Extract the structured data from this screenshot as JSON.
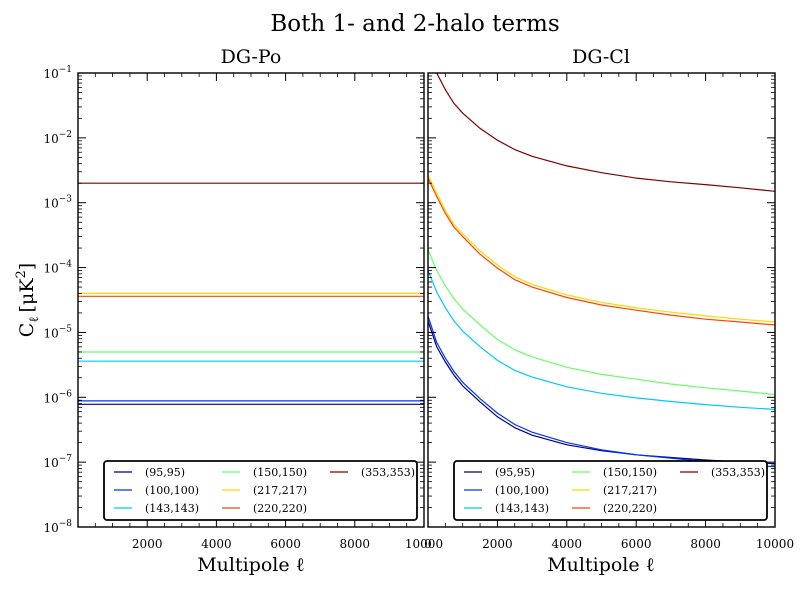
{
  "figure": {
    "suptitle": "Both 1- and 2-halo terms",
    "ylabel_main": "C",
    "ylabel_sub": "ℓ",
    "ylabel_unit": "[μK",
    "ylabel_sup": "2",
    "ylabel_close": "]",
    "xlabel": "Multipole ℓ"
  },
  "y_tick_base": "10",
  "y_tick_exponents": [
    "−8",
    "−7",
    "−6",
    "−5",
    "−4",
    "−3",
    "−2",
    "−1"
  ],
  "x_tick_labels_left": [
    "2000",
    "4000",
    "6000",
    "8000",
    "10000"
  ],
  "x_tick_labels_right": [
    "0",
    "2000",
    "4000",
    "6000",
    "8000",
    "10000"
  ],
  "legend": {
    "items": [
      {
        "label": "(95,95)",
        "color": "#00007f"
      },
      {
        "label": "(100,100)",
        "color": "#0032ff"
      },
      {
        "label": "(143,143)",
        "color": "#00c8ff"
      },
      {
        "label": "(150,150)",
        "color": "#66ff66"
      },
      {
        "label": "(217,217)",
        "color": "#ffd700"
      },
      {
        "label": "(220,220)",
        "color": "#ff4500"
      },
      {
        "label": "(353,353)",
        "color": "#7f0000"
      }
    ]
  },
  "chart_data": [
    {
      "type": "line",
      "title": "DG-Po",
      "xlabel": "Multipole ℓ",
      "ylabel": "Cℓ [μK²]",
      "xlim": [
        0,
        10000
      ],
      "ylim": [
        1e-08,
        0.1
      ],
      "yscale": "log",
      "grid": false,
      "legend_position": "lower center",
      "series": [
        {
          "name": "(95,95)",
          "color": "#00007f",
          "x": [
            0,
            10000
          ],
          "y": [
            7.8e-07,
            7.8e-07
          ]
        },
        {
          "name": "(100,100)",
          "color": "#0032ff",
          "x": [
            0,
            10000
          ],
          "y": [
            8.8e-07,
            8.8e-07
          ]
        },
        {
          "name": "(143,143)",
          "color": "#00c8ff",
          "x": [
            0,
            10000
          ],
          "y": [
            3.6e-06,
            3.6e-06
          ]
        },
        {
          "name": "(150,150)",
          "color": "#66ff66",
          "x": [
            0,
            10000
          ],
          "y": [
            5e-06,
            5e-06
          ]
        },
        {
          "name": "(217,217)",
          "color": "#ffd700",
          "x": [
            0,
            10000
          ],
          "y": [
            4e-05,
            4e-05
          ]
        },
        {
          "name": "(220,220)",
          "color": "#ff4500",
          "x": [
            0,
            10000
          ],
          "y": [
            3.6e-05,
            3.6e-05
          ]
        },
        {
          "name": "(353,353)",
          "color": "#7f0000",
          "x": [
            0,
            10000
          ],
          "y": [
            0.002,
            0.002
          ]
        }
      ]
    },
    {
      "type": "line",
      "title": "DG-Cl",
      "xlabel": "Multipole ℓ",
      "ylabel": "Cℓ [μK²]",
      "xlim": [
        0,
        10000
      ],
      "ylim": [
        1e-08,
        0.1
      ],
      "yscale": "log",
      "grid": false,
      "legend_position": "lower center",
      "series": [
        {
          "name": "(95,95)",
          "color": "#00007f",
          "x": [
            0,
            250,
            500,
            750,
            1000,
            1500,
            2000,
            2500,
            3000,
            4000,
            5000,
            6000,
            7000,
            8000,
            9000,
            10000
          ],
          "y": [
            1.5e-05,
            6e-06,
            3.5e-06,
            2.2e-06,
            1.5e-06,
            8.5e-07,
            5e-07,
            3.4e-07,
            2.6e-07,
            1.85e-07,
            1.5e-07,
            1.3e-07,
            1.18e-07,
            1.08e-07,
            1e-07,
            9.5e-08
          ]
        },
        {
          "name": "(100,100)",
          "color": "#0032ff",
          "x": [
            0,
            250,
            500,
            750,
            1000,
            1500,
            2000,
            2500,
            3000,
            4000,
            5000,
            6000,
            7000,
            8000,
            9000,
            10000
          ],
          "y": [
            1.8e-05,
            7e-06,
            4e-06,
            2.5e-06,
            1.7e-06,
            9.5e-07,
            5.7e-07,
            3.8e-07,
            2.9e-07,
            2e-07,
            1.55e-07,
            1.3e-07,
            1.15e-07,
            1.02e-07,
            9.2e-08,
            8.5e-08
          ]
        },
        {
          "name": "(143,143)",
          "color": "#00c8ff",
          "x": [
            0,
            250,
            500,
            750,
            1000,
            1500,
            2000,
            2500,
            3000,
            4000,
            5000,
            6000,
            7000,
            8000,
            9000,
            10000
          ],
          "y": [
            9e-05,
            4.2e-05,
            2.4e-05,
            1.5e-05,
            1.05e-05,
            6e-06,
            3.7e-06,
            2.6e-06,
            2.05e-06,
            1.45e-06,
            1.15e-06,
            9.8e-07,
            8.6e-07,
            7.7e-07,
            7e-07,
            6.5e-07
          ]
        },
        {
          "name": "(150,150)",
          "color": "#66ff66",
          "x": [
            0,
            250,
            500,
            750,
            1000,
            1500,
            2000,
            2500,
            3000,
            4000,
            5000,
            6000,
            7000,
            8000,
            9000,
            10000
          ],
          "y": [
            0.00019,
            9e-05,
            5.2e-05,
            3.3e-05,
            2.3e-05,
            1.3e-05,
            7.8e-06,
            5.4e-06,
            4.2e-06,
            2.9e-06,
            2.25e-06,
            1.9e-06,
            1.6e-06,
            1.4e-06,
            1.25e-06,
            1.1e-06
          ]
        },
        {
          "name": "(217,217)",
          "color": "#ffd700",
          "x": [
            0,
            250,
            500,
            750,
            1000,
            1500,
            2000,
            2500,
            3000,
            4000,
            5000,
            6000,
            7000,
            8000,
            9000,
            10000
          ],
          "y": [
            0.0027,
            0.0014,
            0.00075,
            0.00046,
            0.00033,
            0.00018,
            0.00011,
            7.2e-05,
            5.5e-05,
            3.8e-05,
            2.9e-05,
            2.4e-05,
            2.05e-05,
            1.8e-05,
            1.6e-05,
            1.45e-05
          ]
        },
        {
          "name": "(220,220)",
          "color": "#ff4500",
          "x": [
            0,
            250,
            500,
            750,
            1000,
            1500,
            2000,
            2500,
            3000,
            4000,
            5000,
            6000,
            7000,
            8000,
            9000,
            10000
          ],
          "y": [
            0.0024,
            0.00125,
            0.00068,
            0.00042,
            0.0003,
            0.00016,
            9.8e-05,
            6.5e-05,
            5e-05,
            3.45e-05,
            2.65e-05,
            2.2e-05,
            1.85e-05,
            1.6e-05,
            1.45e-05,
            1.3e-05
          ]
        },
        {
          "name": "(353,353)",
          "color": "#7f0000",
          "x": [
            0,
            250,
            500,
            750,
            1000,
            1500,
            2000,
            2500,
            3000,
            4000,
            5000,
            6000,
            7000,
            8000,
            9000,
            10000
          ],
          "y": [
            0.2,
            0.1,
            0.055,
            0.034,
            0.024,
            0.014,
            0.0092,
            0.0066,
            0.0052,
            0.0037,
            0.0029,
            0.0024,
            0.0021,
            0.0019,
            0.0017,
            0.0015
          ]
        }
      ]
    }
  ]
}
